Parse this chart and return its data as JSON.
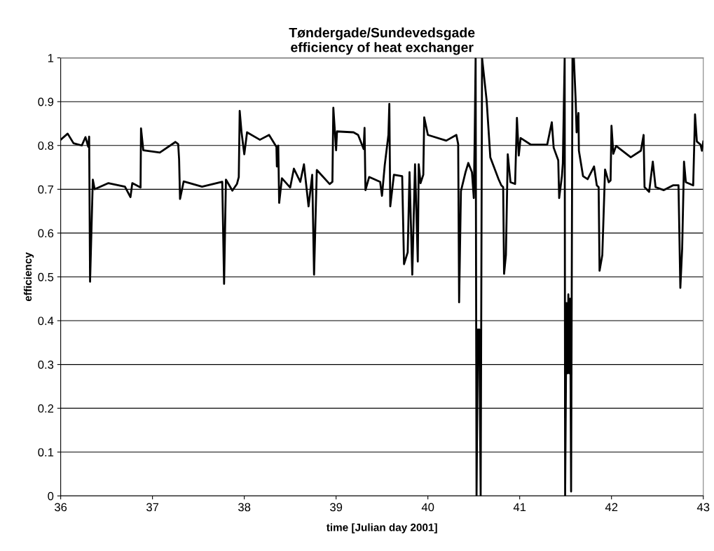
{
  "chart_data": {
    "type": "line",
    "title": "Tøndergade/Sundevedsgade\nefficiency of heat exchanger",
    "xlabel": "time [Julian day 2001]",
    "ylabel": "efficiency",
    "xlim": [
      36,
      43
    ],
    "xticks": [
      36,
      37,
      38,
      39,
      40,
      41,
      42,
      43
    ],
    "ylim": [
      0,
      1
    ],
    "yticks": [
      0,
      0.1,
      0.2,
      0.3,
      0.4,
      0.5,
      0.6,
      0.7,
      0.8,
      0.9,
      1
    ],
    "grid": "y",
    "marker": "none",
    "line_style": "solid",
    "series": [
      {
        "color": "#000000",
        "x": [
          36.0,
          36.076,
          36.14,
          36.23,
          36.27,
          36.3,
          36.31,
          36.32,
          36.35,
          36.37,
          36.52,
          36.7,
          36.76,
          36.78,
          36.87,
          36.875,
          36.9,
          37.08,
          37.25,
          37.28,
          37.29,
          37.3,
          37.34,
          37.54,
          37.76,
          37.78,
          37.8,
          37.87,
          37.92,
          37.94,
          37.95,
          37.97,
          38.0,
          38.03,
          38.17,
          38.27,
          38.35,
          38.355,
          38.37,
          38.38,
          38.41,
          38.5,
          38.54,
          38.61,
          38.65,
          38.7,
          38.74,
          38.76,
          38.79,
          38.93,
          38.96,
          38.97,
          39.0,
          39.01,
          39.19,
          39.24,
          39.3,
          39.31,
          39.32,
          39.36,
          39.48,
          39.5,
          39.53,
          39.57,
          39.58,
          39.59,
          39.63,
          39.72,
          39.74,
          39.78,
          39.8,
          39.83,
          39.86,
          39.89,
          39.9,
          39.92,
          39.95,
          39.96,
          40.0,
          40.2,
          40.31,
          40.33,
          40.34,
          40.36,
          40.41,
          40.44,
          40.48,
          40.5,
          40.51,
          40.52,
          40.53,
          40.545,
          40.55,
          40.56,
          40.575,
          40.59,
          40.64,
          40.68,
          40.77,
          40.8,
          40.82,
          40.83,
          40.85,
          40.87,
          40.9,
          40.95,
          40.97,
          40.99,
          41.01,
          41.12,
          41.3,
          41.35,
          41.37,
          41.42,
          41.43,
          41.46,
          41.47,
          41.49,
          41.495,
          41.51,
          41.52,
          41.53,
          41.54,
          41.55,
          41.56,
          41.575,
          41.59,
          41.61,
          41.62,
          41.64,
          41.645,
          41.69,
          41.74,
          41.81,
          41.84,
          41.86,
          41.87,
          41.9,
          41.93,
          41.97,
          41.99,
          42.0,
          42.02,
          42.05,
          42.21,
          42.32,
          42.35,
          42.36,
          42.41,
          42.45,
          42.48,
          42.57,
          42.67,
          42.73,
          42.75,
          42.77,
          42.79,
          42.81,
          42.89,
          42.91,
          42.93,
          42.97,
          42.985,
          43.0
        ],
        "values": [
          0.813,
          0.827,
          0.805,
          0.8,
          0.819,
          0.797,
          0.82,
          0.489,
          0.722,
          0.7,
          0.714,
          0.706,
          0.682,
          0.714,
          0.704,
          0.839,
          0.789,
          0.784,
          0.808,
          0.803,
          0.768,
          0.678,
          0.718,
          0.706,
          0.717,
          0.484,
          0.722,
          0.697,
          0.712,
          0.728,
          0.879,
          0.83,
          0.78,
          0.83,
          0.813,
          0.824,
          0.797,
          0.752,
          0.8,
          0.669,
          0.725,
          0.704,
          0.747,
          0.717,
          0.757,
          0.661,
          0.733,
          0.505,
          0.744,
          0.712,
          0.717,
          0.886,
          0.789,
          0.832,
          0.83,
          0.824,
          0.792,
          0.84,
          0.698,
          0.728,
          0.717,
          0.685,
          0.755,
          0.824,
          0.895,
          0.661,
          0.733,
          0.73,
          0.529,
          0.556,
          0.739,
          0.505,
          0.757,
          0.535,
          0.757,
          0.714,
          0.733,
          0.864,
          0.824,
          0.811,
          0.824,
          0.803,
          0.442,
          0.696,
          0.739,
          0.76,
          0.739,
          0.68,
          0.82,
          1.0,
          0.0,
          0.38,
          0.3,
          0.38,
          0.0,
          1.0,
          0.903,
          0.773,
          0.723,
          0.709,
          0.705,
          0.507,
          0.55,
          0.78,
          0.716,
          0.712,
          0.863,
          0.777,
          0.817,
          0.802,
          0.802,
          0.853,
          0.795,
          0.766,
          0.68,
          0.73,
          0.759,
          1.0,
          0.0,
          0.44,
          0.28,
          0.46,
          0.28,
          0.45,
          0.01,
          1.0,
          1.0,
          0.903,
          0.83,
          0.874,
          0.788,
          0.73,
          0.723,
          0.752,
          0.709,
          0.705,
          0.514,
          0.55,
          0.745,
          0.716,
          0.72,
          0.845,
          0.781,
          0.799,
          0.773,
          0.788,
          0.824,
          0.705,
          0.694,
          0.763,
          0.705,
          0.698,
          0.709,
          0.709,
          0.475,
          0.565,
          0.763,
          0.716,
          0.709,
          0.871,
          0.809,
          0.802,
          0.788,
          0.809
        ]
      }
    ]
  }
}
